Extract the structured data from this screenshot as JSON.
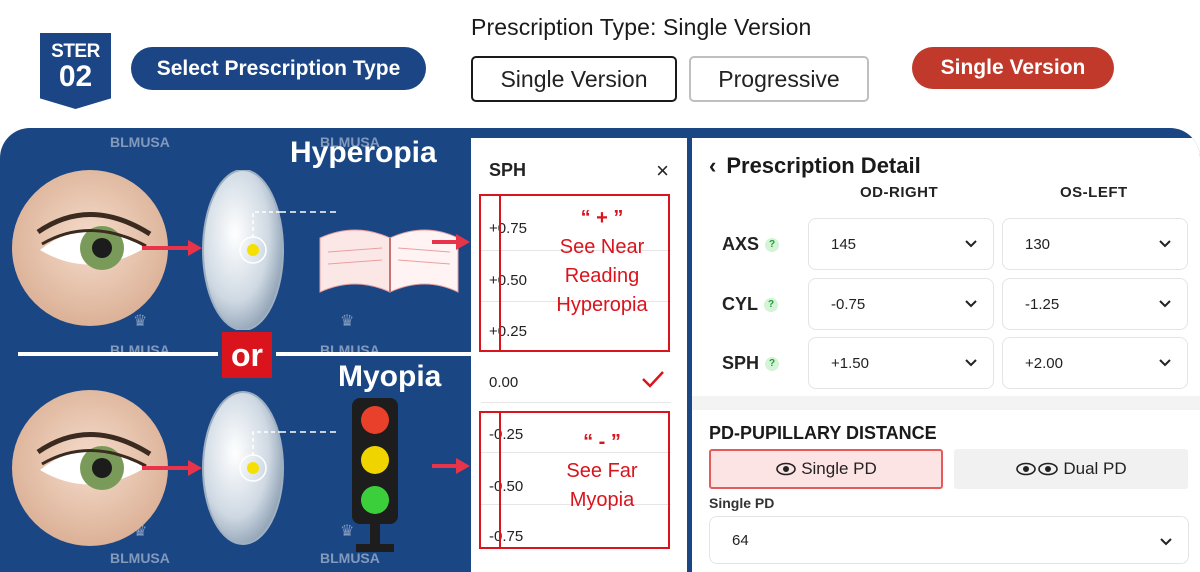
{
  "header": {
    "step_line1": "STER",
    "step_line2": "02",
    "select_label": "Select Prescription Type",
    "rx_type_title": "Prescription Type: Single Version",
    "option_single": "Single Version",
    "option_progressive": "Progressive",
    "selected_badge": "Single Version"
  },
  "illustration": {
    "watermark": "BLMUSA",
    "hyperopia_label": "Hyperopia",
    "or_label": "or",
    "myopia_label": "Myopia"
  },
  "sph_picker": {
    "title": "SPH",
    "close": "×",
    "values": [
      "+0.75",
      "+0.50",
      "+0.25",
      "0.00",
      "-0.25",
      "-0.50",
      "-0.75"
    ],
    "selected": "0.00",
    "plus_note": {
      "sign": "“ + ”",
      "line1": "See Near",
      "line2": "Reading",
      "line3": "Hyperopia"
    },
    "minus_note": {
      "sign": "“ - ”",
      "line1": "See Far",
      "line2": "Myopia"
    }
  },
  "detail": {
    "back": "‹",
    "title": "Prescription Detail",
    "col_right": "OD-RIGHT",
    "col_left": "OS-LEFT",
    "help": "?",
    "rows": [
      {
        "label": "AXS",
        "right": "145",
        "left": "130"
      },
      {
        "label": "CYL",
        "right": "-0.75",
        "left": "-1.25"
      },
      {
        "label": "SPH",
        "right": "+1.50",
        "left": "+2.00"
      }
    ],
    "pd_title": "PD-PUPILLARY DISTANCE",
    "pd_single": "Single PD",
    "pd_dual": "Dual PD",
    "pd_sub": "Single PD",
    "pd_value": "64"
  },
  "colors": {
    "navy": "#1a4684",
    "accent_red": "#c0392b",
    "note_red": "#d9141c"
  }
}
